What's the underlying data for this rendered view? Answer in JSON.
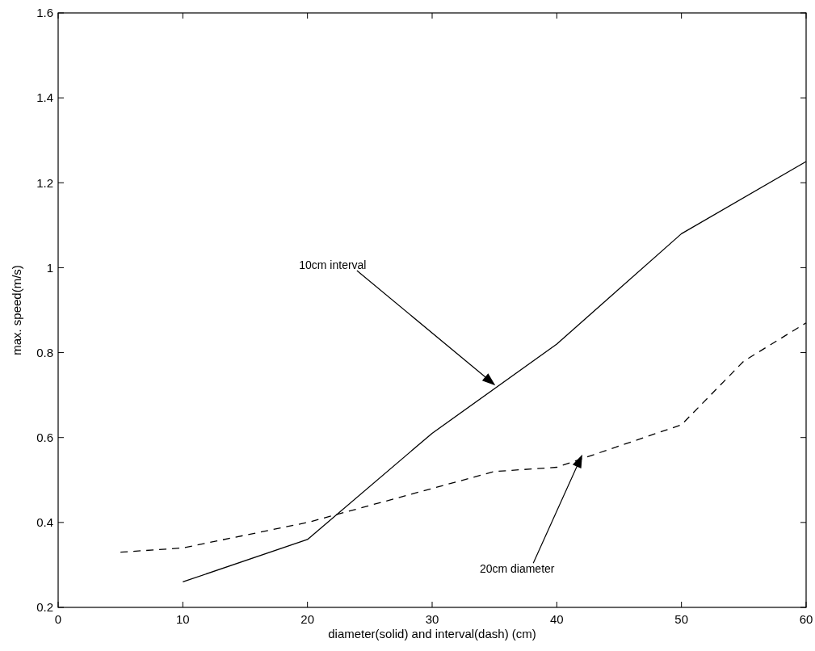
{
  "chart_data": {
    "type": "line",
    "xlabel": "diameter(solid) and interval(dash) (cm)",
    "ylabel": "max. speed(m/s)",
    "xlim": [
      0,
      60
    ],
    "xticks": [
      0,
      10,
      20,
      30,
      40,
      50,
      60
    ],
    "ylim": [
      0.2,
      1.6
    ],
    "yticks": [
      0.2,
      0.4,
      0.6,
      0.8,
      1,
      1.2,
      1.4,
      1.6
    ],
    "grid": false,
    "series": [
      {
        "color": "#000000",
        "line_style": "solid",
        "x": [
          10,
          20,
          30,
          40,
          50,
          60
        ],
        "values": [
          0.26,
          0.36,
          0.61,
          0.82,
          1.08,
          1.25
        ]
      },
      {
        "color": "#000000",
        "line_style": "dashed",
        "x": [
          5,
          10,
          20,
          25,
          30,
          35,
          40,
          45,
          50,
          55,
          60
        ],
        "values": [
          0.33,
          0.34,
          0.4,
          0.44,
          0.48,
          0.52,
          0.53,
          0.58,
          0.63,
          0.78,
          0.87
        ]
      }
    ],
    "annotations": [
      "10cm interval",
      "20cm diameter"
    ]
  }
}
